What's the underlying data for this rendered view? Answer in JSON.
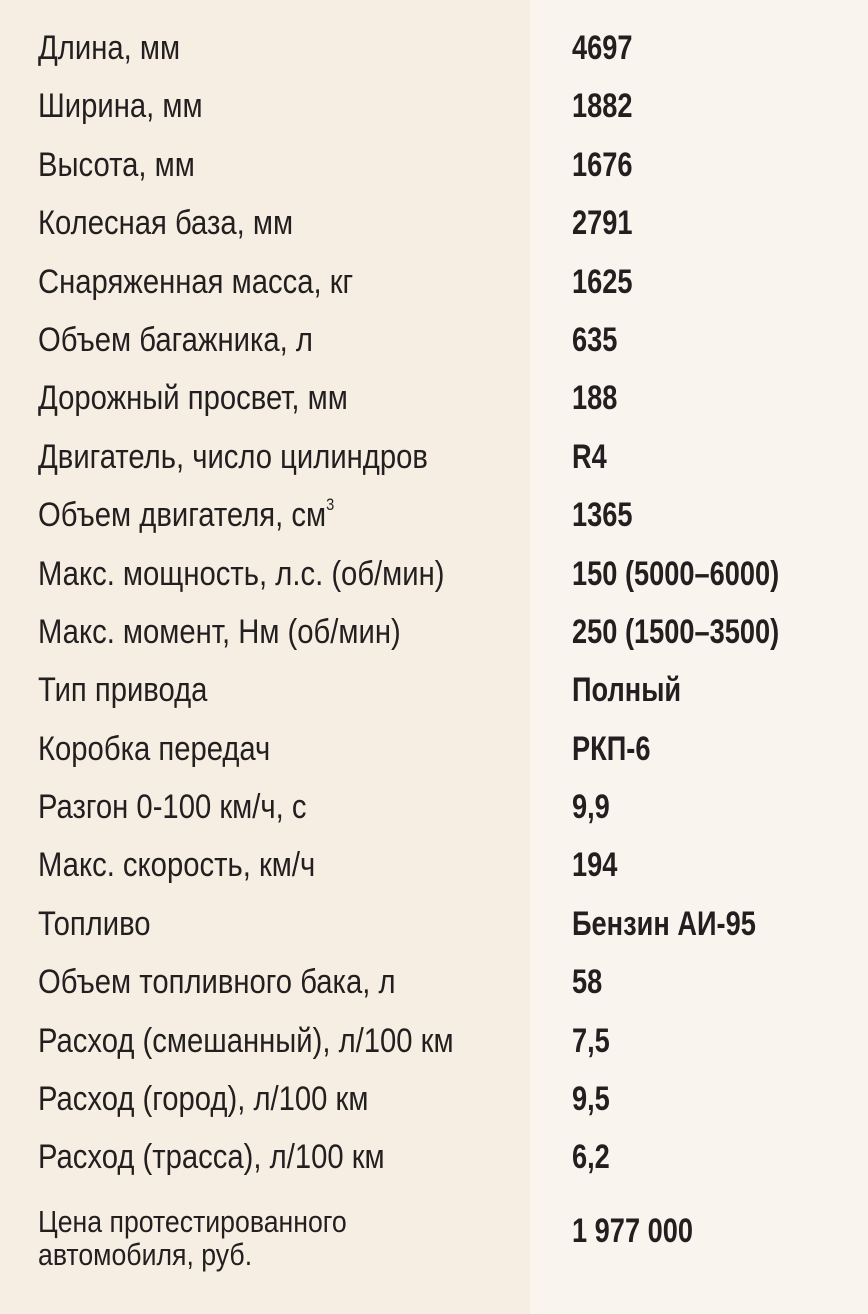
{
  "colors": {
    "left_bg": "#f6eee2",
    "right_bg": "#f9f5ee",
    "text": "#231f20"
  },
  "specs": [
    {
      "label": "Длина, мм",
      "value": "4697"
    },
    {
      "label": "Ширина, мм",
      "value": "1882"
    },
    {
      "label": "Высота, мм",
      "value": "1676"
    },
    {
      "label": "Колесная база, мм",
      "value": "2791"
    },
    {
      "label": "Снаряженная масса, кг",
      "value": "1625"
    },
    {
      "label": "Объем багажника, л",
      "value": "635"
    },
    {
      "label": "Дорожный просвет, мм",
      "value": "188"
    },
    {
      "label": "Двигатель, число цилиндров",
      "value": "R4"
    },
    {
      "label": "Объем двигателя, см",
      "label_sup": "3",
      "value": "1365"
    },
    {
      "label": "Макс. мощность, л.с. (об/мин)",
      "value": "150 (5000–6000)"
    },
    {
      "label": "Макс. момент, Нм (об/мин)",
      "value": "250 (1500–3500)"
    },
    {
      "label": "Тип привода",
      "value": "Полный"
    },
    {
      "label": "Коробка передач",
      "value": "РКП-6"
    },
    {
      "label": "Разгон 0-100 км/ч, с",
      "value": "9,9"
    },
    {
      "label": "Макс. скорость, км/ч",
      "value": "194"
    },
    {
      "label": "Топливо",
      "value": "Бензин АИ-95"
    },
    {
      "label": "Объем топливного бака, л",
      "value": "58"
    },
    {
      "label": "Расход (смешанный), л/100 км",
      "value": "7,5"
    },
    {
      "label": "Расход (город), л/100 км",
      "value": "9,5"
    },
    {
      "label": "Расход (трасса), л/100 км",
      "value": "6,2"
    }
  ],
  "price": {
    "label_line1": "Цена протестированного",
    "label_line2": "автомобиля, руб.",
    "value": "1 977 000"
  }
}
